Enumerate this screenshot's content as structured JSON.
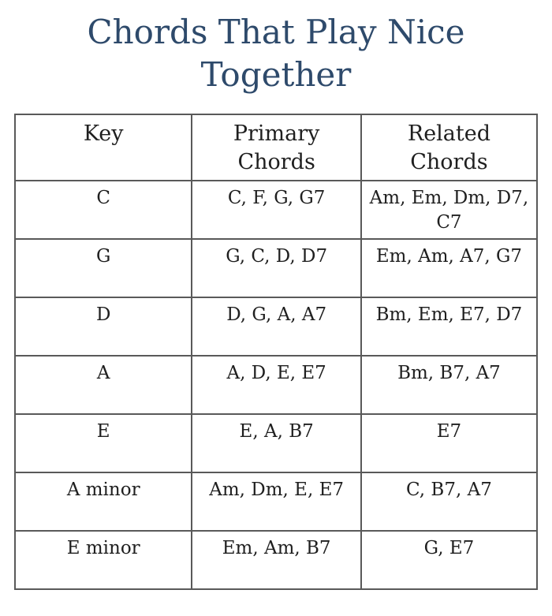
{
  "page": {
    "title": "Chords That Play Nice Together"
  },
  "table": {
    "headers": [
      "Key",
      "Primary Chords",
      "Related Chords"
    ],
    "rows": [
      {
        "key": "C",
        "primary": "C, F, G, G7",
        "related": "Am, Em, Dm, D7, C7"
      },
      {
        "key": "G",
        "primary": "G, C, D, D7",
        "related": "Em, Am, A7, G7"
      },
      {
        "key": "D",
        "primary": "D, G, A, A7",
        "related": "Bm, Em, E7, D7"
      },
      {
        "key": "A",
        "primary": "A, D, E, E7",
        "related": "Bm, B7, A7"
      },
      {
        "key": "E",
        "primary": "E, A, B7",
        "related": "E7"
      },
      {
        "key": "A minor",
        "primary": "Am, Dm, E, E7",
        "related": "C, B7, A7"
      },
      {
        "key": "E minor",
        "primary": "Em, Am, B7",
        "related": "G, E7"
      }
    ]
  },
  "chart_data": {
    "type": "table",
    "title": "Chords That Play Nice Together",
    "columns": [
      "Key",
      "Primary Chords",
      "Related Chords"
    ],
    "rows": [
      [
        "C",
        "C, F, G, G7",
        "Am, Em, Dm, D7, C7"
      ],
      [
        "G",
        "G, C, D, D7",
        "Em, Am, A7, G7"
      ],
      [
        "D",
        "D, G, A, A7",
        "Bm, Em, E7, D7"
      ],
      [
        "A",
        "A, D, E, E7",
        "Bm, B7, A7"
      ],
      [
        "E",
        "E, A, B7",
        "E7"
      ],
      [
        "A minor",
        "Am, Dm, E, E7",
        "C, B7, A7"
      ],
      [
        "E minor",
        "Em, Am, B7",
        "G, E7"
      ]
    ],
    "legend_position": "none",
    "grid": true
  },
  "colors": {
    "title_text": "#2e4a6b",
    "body_text": "#1f1f1f",
    "table_border": "#595959",
    "background": "#ffffff"
  }
}
